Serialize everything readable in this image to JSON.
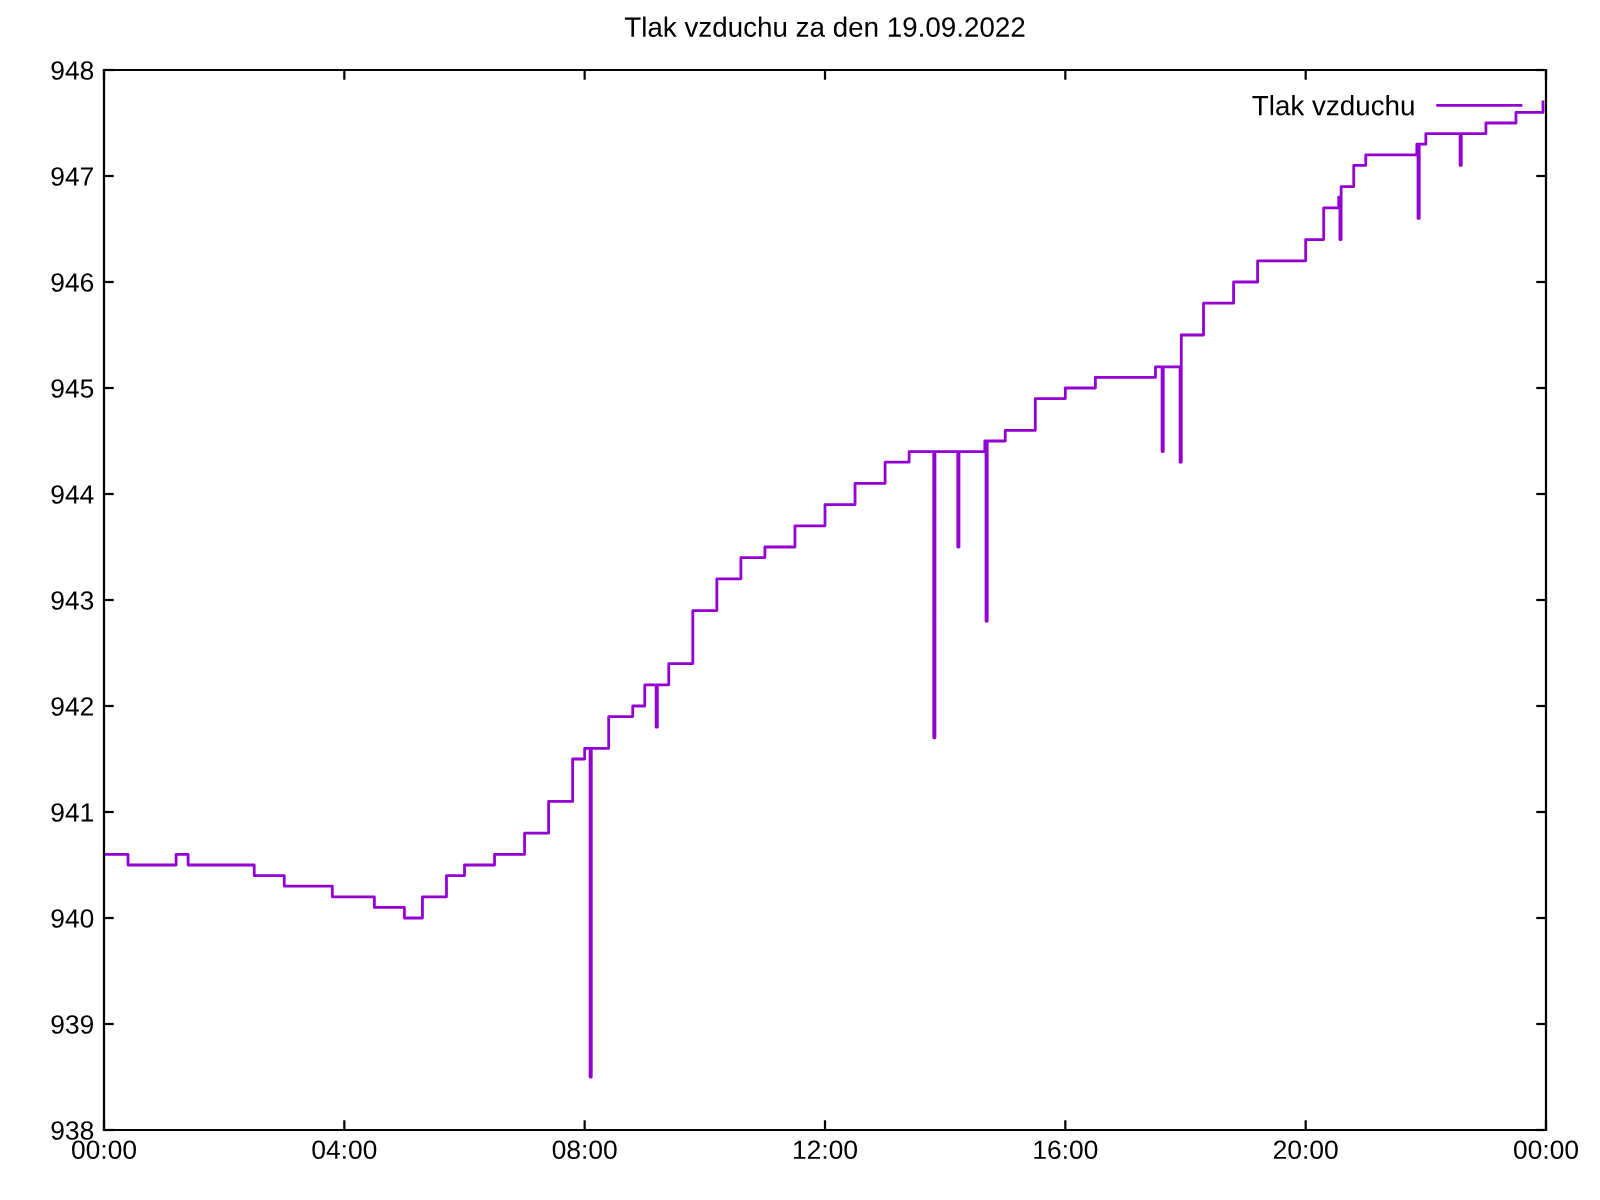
{
  "chart_data": {
    "type": "step",
    "title": "Tlak vzduchu za den 19.09.2022",
    "x": [
      0,
      0.4,
      0.8,
      1.2,
      1.4,
      2.0,
      2.5,
      3.0,
      3.8,
      4.5,
      5.0,
      5.3,
      5.7,
      6.0,
      6.5,
      7.0,
      7.4,
      7.8,
      8.0,
      8.07,
      8.09,
      8.11,
      8.4,
      8.8,
      9.0,
      9.17,
      9.19,
      9.21,
      9.4,
      9.8,
      10.2,
      10.6,
      11.0,
      11.5,
      12.0,
      12.5,
      13.0,
      13.4,
      13.79,
      13.81,
      13.83,
      14.19,
      14.21,
      14.23,
      14.66,
      14.68,
      14.7,
      15.0,
      15.5,
      16.0,
      16.5,
      17.5,
      17.59,
      17.61,
      17.63,
      17.89,
      17.91,
      17.93,
      18.3,
      18.8,
      19.2,
      19.6,
      20.0,
      20.3,
      20.55,
      20.57,
      20.59,
      20.8,
      21.0,
      21.5,
      21.85,
      21.87,
      21.89,
      22.0,
      22.55,
      22.57,
      22.59,
      23.0,
      23.5,
      23.8,
      23.95
    ],
    "series": [
      {
        "name": "Tlak vzduchu",
        "color": "#9400d3",
        "values": [
          940.6,
          940.5,
          940.5,
          940.6,
          940.5,
          940.5,
          940.4,
          940.3,
          940.2,
          940.1,
          940.0,
          940.2,
          940.4,
          940.5,
          940.6,
          940.8,
          941.1,
          941.5,
          941.6,
          941.6,
          938.5,
          941.6,
          941.9,
          942.0,
          942.2,
          942.2,
          941.8,
          942.2,
          942.4,
          942.9,
          943.2,
          943.4,
          943.5,
          943.7,
          943.9,
          944.1,
          944.3,
          944.4,
          944.4,
          941.7,
          944.4,
          944.4,
          943.5,
          944.4,
          944.5,
          942.8,
          944.5,
          944.6,
          944.9,
          945.0,
          945.1,
          945.2,
          945.2,
          944.4,
          945.2,
          945.2,
          944.3,
          945.5,
          945.8,
          946.0,
          946.2,
          946.2,
          946.4,
          946.7,
          946.8,
          946.4,
          946.9,
          947.1,
          947.2,
          947.2,
          947.3,
          946.6,
          947.3,
          947.4,
          947.4,
          947.1,
          947.4,
          947.5,
          947.6,
          947.6,
          947.7
        ]
      }
    ],
    "xlim": [
      0,
      24
    ],
    "xticks": [
      {
        "value": 0,
        "label": "00:00"
      },
      {
        "value": 4,
        "label": "04:00"
      },
      {
        "value": 8,
        "label": "08:00"
      },
      {
        "value": 12,
        "label": "12:00"
      },
      {
        "value": 16,
        "label": "16:00"
      },
      {
        "value": 20,
        "label": "20:00"
      },
      {
        "value": 24,
        "label": "00:00"
      }
    ],
    "ylim": [
      938,
      948
    ],
    "yticks": [
      938,
      939,
      940,
      941,
      942,
      943,
      944,
      945,
      946,
      947,
      948
    ],
    "legend": "top right",
    "grid": false
  }
}
